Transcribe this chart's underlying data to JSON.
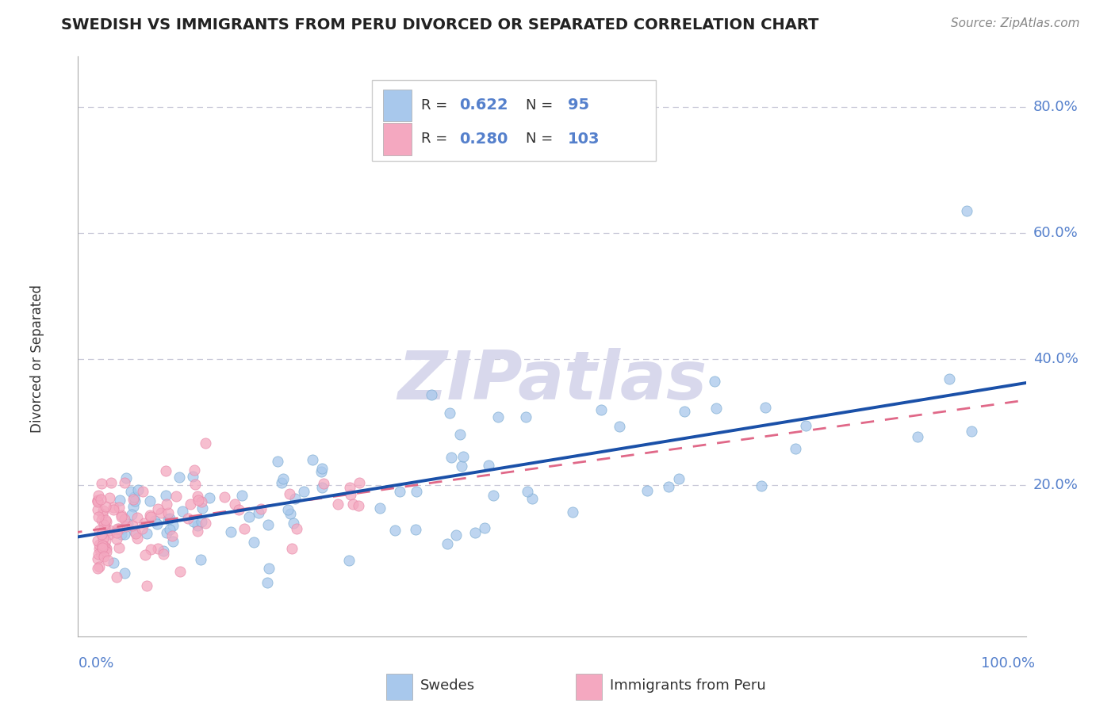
{
  "title": "SWEDISH VS IMMIGRANTS FROM PERU DIVORCED OR SEPARATED CORRELATION CHART",
  "source": "Source: ZipAtlas.com",
  "ylabel": "Divorced or Separated",
  "legend_swedes": "Swedes",
  "legend_peru": "Immigrants from Peru",
  "R_swedes": 0.622,
  "N_swedes": 95,
  "R_peru": 0.28,
  "N_peru": 103,
  "color_swedes": "#a8c8ec",
  "color_peru": "#f4a8c0",
  "color_swedes_edge": "#7aaad0",
  "color_peru_edge": "#e888a8",
  "color_line_swedes": "#1a50a8",
  "color_line_peru": "#e06888",
  "color_grid": "#c8c8d8",
  "color_axis_labels": "#5580cc",
  "color_title": "#222222",
  "watermark_color": "#d8d8ec",
  "background_color": "#ffffff"
}
